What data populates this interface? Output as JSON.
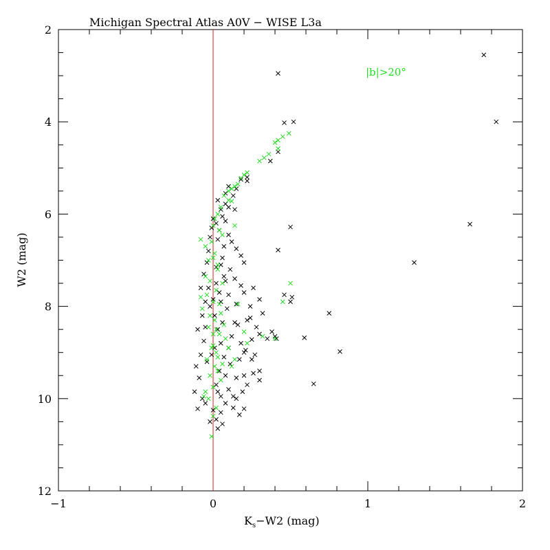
{
  "chart_data": {
    "type": "scatter",
    "title": "Michigan Spectral Atlas A0V − WISE L3a",
    "xlabel_main": "K",
    "xlabel_sub": "s",
    "xlabel_rest": "−W2 (mag)",
    "ylabel": "W2 (mag)",
    "annotation": "|b|>20°",
    "xlim": [
      -1,
      2
    ],
    "ylim": [
      2,
      12
    ],
    "y_inverted": true,
    "x_ticks": [
      -1,
      0,
      1,
      2
    ],
    "x_tick_labels": [
      "−1",
      "0",
      "1",
      "2"
    ],
    "y_ticks": [
      2,
      4,
      6,
      8,
      10,
      12
    ],
    "y_tick_labels": [
      "2",
      "4",
      "6",
      "8",
      "10",
      "12"
    ],
    "reference_line": {
      "x": 0,
      "color": "#cc2222"
    },
    "marker": "x",
    "colors": {
      "black_series": "#000000",
      "green_series": "#22dd22"
    },
    "series": [
      {
        "color": "#000000",
        "points": [
          [
            1.75,
            2.55
          ],
          [
            1.83,
            4.0
          ],
          [
            0.42,
            2.95
          ],
          [
            0.46,
            4.02
          ],
          [
            0.52,
            4.0
          ],
          [
            0.42,
            4.65
          ],
          [
            0.37,
            4.85
          ],
          [
            0.22,
            5.2
          ],
          [
            0.22,
            5.28
          ],
          [
            0.18,
            5.25
          ],
          [
            0.15,
            5.45
          ],
          [
            0.1,
            5.4
          ],
          [
            0.08,
            5.55
          ],
          [
            0.13,
            5.6
          ],
          [
            0.03,
            5.7
          ],
          [
            0.08,
            5.78
          ],
          [
            0.05,
            5.9
          ],
          [
            0.1,
            5.85
          ],
          [
            0.14,
            5.9
          ],
          [
            0.06,
            6.05
          ],
          [
            0.0,
            6.1
          ],
          [
            0.02,
            6.2
          ],
          [
            0.08,
            6.15
          ],
          [
            0.04,
            6.35
          ],
          [
            0.1,
            6.45
          ],
          [
            0.03,
            6.55
          ],
          [
            0.12,
            6.6
          ],
          [
            0.07,
            6.7
          ],
          [
            0.15,
            6.75
          ],
          [
            0.18,
            6.9
          ],
          [
            0.2,
            7.05
          ],
          [
            0.06,
            6.95
          ],
          [
            0.02,
            7.15
          ],
          [
            0.11,
            7.2
          ],
          [
            0.14,
            7.4
          ],
          [
            0.08,
            7.45
          ],
          [
            0.18,
            7.55
          ],
          [
            0.26,
            7.6
          ],
          [
            0.2,
            7.7
          ],
          [
            0.1,
            7.75
          ],
          [
            0.05,
            7.9
          ],
          [
            0.15,
            7.95
          ],
          [
            0.24,
            8.0
          ],
          [
            0.3,
            7.85
          ],
          [
            0.46,
            7.75
          ],
          [
            0.5,
            7.9
          ],
          [
            0.51,
            7.8
          ],
          [
            0.5,
            6.28
          ],
          [
            0.42,
            6.78
          ],
          [
            0.32,
            8.15
          ],
          [
            0.22,
            8.3
          ],
          [
            0.14,
            8.35
          ],
          [
            0.28,
            8.45
          ],
          [
            0.38,
            8.55
          ],
          [
            0.3,
            8.6
          ],
          [
            0.35,
            8.7
          ],
          [
            0.4,
            8.65
          ],
          [
            0.41,
            8.7
          ],
          [
            0.59,
            8.68
          ],
          [
            0.25,
            8.72
          ],
          [
            0.18,
            8.8
          ],
          [
            0.1,
            8.9
          ],
          [
            0.2,
            9.0
          ],
          [
            0.27,
            9.05
          ],
          [
            0.25,
            9.15
          ],
          [
            0.3,
            9.4
          ],
          [
            0.2,
            9.5
          ],
          [
            0.15,
            9.55
          ],
          [
            0.3,
            9.6
          ],
          [
            0.22,
            9.7
          ],
          [
            0.1,
            9.8
          ],
          [
            0.05,
            9.95
          ],
          [
            0.15,
            10.0
          ],
          [
            0.08,
            10.1
          ],
          [
            0.13,
            10.2
          ],
          [
            0.2,
            10.22
          ],
          [
            0.17,
            10.35
          ],
          [
            0.05,
            10.3
          ],
          [
            0.02,
            10.45
          ],
          [
            0.06,
            10.55
          ],
          [
            0.03,
            10.65
          ],
          [
            -0.02,
            10.5
          ],
          [
            0.0,
            10.25
          ],
          [
            -0.05,
            10.1
          ],
          [
            -0.1,
            10.22
          ],
          [
            -0.07,
            10.0
          ],
          [
            -0.12,
            9.85
          ],
          [
            -0.09,
            9.55
          ],
          [
            -0.11,
            9.3
          ],
          [
            -0.08,
            9.05
          ],
          [
            -0.06,
            8.75
          ],
          [
            -0.1,
            8.5
          ],
          [
            -0.07,
            8.2
          ],
          [
            -0.05,
            7.9
          ],
          [
            -0.08,
            7.6
          ],
          [
            -0.06,
            7.3
          ],
          [
            -0.04,
            7.05
          ],
          [
            -0.03,
            6.8
          ],
          [
            -0.02,
            6.5
          ],
          [
            -0.01,
            6.3
          ],
          [
            0.01,
            8.2
          ],
          [
            0.03,
            8.5
          ],
          [
            0.05,
            8.8
          ],
          [
            0.07,
            9.1
          ],
          [
            0.04,
            9.4
          ],
          [
            0.02,
            9.7
          ],
          [
            0.09,
            8.05
          ],
          [
            0.12,
            8.65
          ],
          [
            0.11,
            9.25
          ],
          [
            0.13,
            9.95
          ],
          [
            0.16,
            8.4
          ],
          [
            0.17,
            9.15
          ],
          [
            0.19,
            9.85
          ],
          [
            0.21,
            8.95
          ],
          [
            0.26,
            9.45
          ],
          [
            0.24,
            8.25
          ],
          [
            0.75,
            8.15
          ],
          [
            0.82,
            8.98
          ],
          [
            0.65,
            9.68
          ],
          [
            1.3,
            7.05
          ],
          [
            1.66,
            6.22
          ],
          [
            -0.03,
            7.6
          ],
          [
            0.0,
            7.85
          ],
          [
            0.02,
            7.5
          ],
          [
            0.04,
            7.7
          ],
          [
            -0.02,
            8.0
          ],
          [
            0.06,
            8.35
          ],
          [
            0.01,
            8.9
          ],
          [
            -0.04,
            9.2
          ],
          [
            0.03,
            9.85
          ],
          [
            0.08,
            9.5
          ],
          [
            -0.05,
            8.45
          ],
          [
            0.07,
            7.35
          ],
          [
            0.05,
            7.1
          ],
          [
            -0.01,
            9.05
          ]
        ]
      },
      {
        "color": "#22dd22",
        "points": [
          [
            0.49,
            4.25
          ],
          [
            0.45,
            4.32
          ],
          [
            0.42,
            4.4
          ],
          [
            0.4,
            4.45
          ],
          [
            0.42,
            4.58
          ],
          [
            0.36,
            4.7
          ],
          [
            0.33,
            4.78
          ],
          [
            0.3,
            4.85
          ],
          [
            0.22,
            5.1
          ],
          [
            0.2,
            5.15
          ],
          [
            0.18,
            5.22
          ],
          [
            0.16,
            5.35
          ],
          [
            0.14,
            5.4
          ],
          [
            0.12,
            5.45
          ],
          [
            0.1,
            5.5
          ],
          [
            0.07,
            5.6
          ],
          [
            0.1,
            5.7
          ],
          [
            0.12,
            5.72
          ],
          [
            0.05,
            5.85
          ],
          [
            0.03,
            6.0
          ],
          [
            0.01,
            6.1
          ],
          [
            0.0,
            6.25
          ],
          [
            0.04,
            6.35
          ],
          [
            0.14,
            6.25
          ],
          [
            0.06,
            6.45
          ],
          [
            -0.08,
            6.55
          ],
          [
            -0.05,
            6.7
          ],
          [
            0.01,
            6.85
          ],
          [
            -0.03,
            7.0
          ],
          [
            0.03,
            7.2
          ],
          [
            -0.05,
            7.35
          ],
          [
            0.06,
            7.5
          ],
          [
            0.02,
            7.65
          ],
          [
            -0.04,
            7.75
          ],
          [
            0.0,
            7.9
          ],
          [
            -0.07,
            8.05
          ],
          [
            0.05,
            8.15
          ],
          [
            0.01,
            8.3
          ],
          [
            -0.03,
            8.45
          ],
          [
            0.04,
            8.6
          ],
          [
            0.08,
            8.7
          ],
          [
            0.0,
            8.85
          ],
          [
            0.1,
            8.9
          ],
          [
            0.02,
            9.0
          ],
          [
            -0.04,
            9.15
          ],
          [
            0.06,
            9.25
          ],
          [
            0.12,
            9.3
          ],
          [
            0.03,
            9.4
          ],
          [
            -0.02,
            9.5
          ],
          [
            0.05,
            9.6
          ],
          [
            0.0,
            9.75
          ],
          [
            -0.05,
            9.85
          ],
          [
            -0.03,
            10.0
          ],
          [
            0.02,
            10.2
          ],
          [
            0.0,
            10.38
          ],
          [
            -0.01,
            10.82
          ],
          [
            0.14,
            9.15
          ],
          [
            0.2,
            8.55
          ],
          [
            0.22,
            8.8
          ],
          [
            0.32,
            8.65
          ],
          [
            0.4,
            8.7
          ],
          [
            0.5,
            7.5
          ],
          [
            0.45,
            7.9
          ],
          [
            0.16,
            7.95
          ],
          [
            0.02,
            8.5
          ],
          [
            -0.02,
            8.2
          ],
          [
            0.0,
            8.6
          ],
          [
            -0.01,
            8.9
          ],
          [
            0.03,
            9.1
          ],
          [
            0.01,
            9.3
          ],
          [
            -0.06,
            9.95
          ],
          [
            0.04,
            7.95
          ],
          [
            -0.08,
            7.8
          ],
          [
            0.07,
            8.4
          ],
          [
            -0.02,
            7.45
          ],
          [
            0.03,
            7.1
          ],
          [
            0.0,
            6.95
          ],
          [
            -0.01,
            6.6
          ]
        ]
      }
    ]
  }
}
